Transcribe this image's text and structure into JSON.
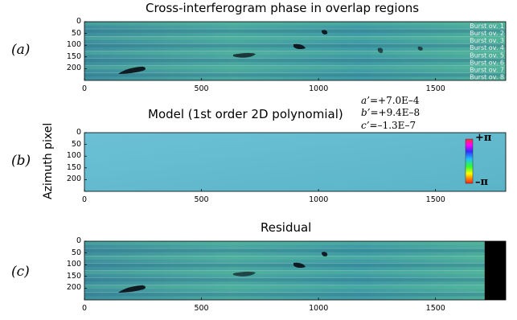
{
  "figure": {
    "ylabel": "Azimuth pixel",
    "panels": [
      {
        "id": "a",
        "label": "(a)",
        "title": "Cross-interferogram phase in overlap regions",
        "burst_labels": [
          "Burst ov. 1",
          "Burst ov. 2",
          "Burst ov. 3",
          "Burst ov. 4",
          "Burst ov. 5",
          "Burst ov. 6",
          "Burst ov. 7",
          "Burst ov. 8"
        ]
      },
      {
        "id": "b",
        "label": "(b)",
        "title": "Model (1st order 2D polynomial)",
        "coefficients": [
          {
            "name": "a’",
            "value": "=+7.0E–4"
          },
          {
            "name": "b’",
            "value": "=+9.4E–8"
          },
          {
            "name": "c’",
            "value": "=–1.3E–7"
          }
        ],
        "colorbar": {
          "max_label": "+π",
          "min_label": "–π",
          "colors": [
            "#ff3030",
            "#ff00ff",
            "#3030ff",
            "#20c0ff",
            "#30ff30",
            "#ffff00",
            "#ff8000",
            "#ff2020"
          ]
        }
      },
      {
        "id": "c",
        "label": "(c)",
        "title": "Residual",
        "masked_from_x": 1710
      }
    ]
  },
  "chart_data": [
    {
      "type": "heatmap",
      "title": "Cross-interferogram phase in overlap regions",
      "xlim": [
        0,
        1800
      ],
      "ylim": [
        250,
        0
      ],
      "xticks": [
        0,
        500,
        1000,
        1500
      ],
      "yticks": [
        0,
        50,
        100,
        150,
        200
      ],
      "rows": 8,
      "row_labels": [
        "Burst ov. 1",
        "Burst ov. 2",
        "Burst ov. 3",
        "Burst ov. 4",
        "Burst ov. 5",
        "Burst ov. 6",
        "Burst ov. 7",
        "Burst ov. 8"
      ],
      "dominant_color": "#4aa3a8"
    },
    {
      "type": "heatmap",
      "title": "Model (1st order 2D polynomial)",
      "xlim": [
        0,
        1800
      ],
      "ylim": [
        250,
        0
      ],
      "xticks": [
        0,
        500,
        1000,
        1500
      ],
      "yticks": [
        0,
        50,
        100,
        150,
        200
      ],
      "colorbar_range": [
        "–π",
        "+π"
      ],
      "dominant_color": "#63b9cf"
    },
    {
      "type": "heatmap",
      "title": "Residual",
      "xlim": [
        0,
        1800
      ],
      "ylim": [
        250,
        0
      ],
      "xticks": [
        0,
        500,
        1000,
        1500
      ],
      "yticks": [
        0,
        50,
        100,
        150,
        200
      ],
      "rows": 8,
      "dominant_color": "#3aa09b"
    }
  ]
}
